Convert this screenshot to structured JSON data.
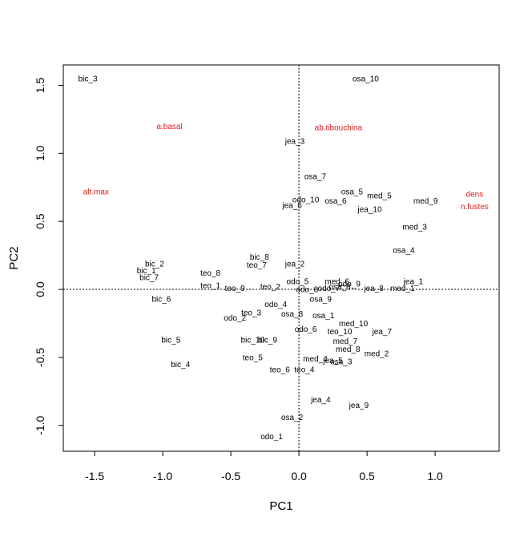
{
  "chart_data": {
    "type": "scatter",
    "xlabel": "PC1",
    "ylabel": "PC2",
    "xlim": [
      -1.73,
      1.47
    ],
    "ylim": [
      -1.19,
      1.65
    ],
    "x_ticks": [
      -1.5,
      -1.0,
      -0.5,
      0.0,
      0.5,
      1.0
    ],
    "y_ticks": [
      -1.0,
      -0.5,
      0.0,
      0.5,
      1.0,
      1.5
    ],
    "x_tick_labels": [
      "-1.5",
      "-1.0",
      "-0.5",
      "0.0",
      "0.5",
      "1.0"
    ],
    "y_tick_labels": [
      "-1.0",
      "-0.5",
      "0.0",
      "0.5",
      "1.0",
      "1.5"
    ],
    "reference_lines": {
      "x": 0,
      "y": 0,
      "style": "dotted"
    },
    "point_color": "#000000",
    "variable_color": "#e31a1c",
    "points": [
      {
        "label": "bic_3",
        "x": -1.55,
        "y": 1.55
      },
      {
        "label": "osa_10",
        "x": 0.49,
        "y": 1.55
      },
      {
        "label": "jea_3",
        "x": -0.03,
        "y": 1.09
      },
      {
        "label": "osa_7",
        "x": 0.12,
        "y": 0.83
      },
      {
        "label": "osa_5",
        "x": 0.39,
        "y": 0.72
      },
      {
        "label": "med_5",
        "x": 0.59,
        "y": 0.69
      },
      {
        "label": "odo_10",
        "x": 0.05,
        "y": 0.66
      },
      {
        "label": "osa_6",
        "x": 0.27,
        "y": 0.65
      },
      {
        "label": "med_9",
        "x": 0.93,
        "y": 0.65
      },
      {
        "label": "jea_6",
        "x": -0.05,
        "y": 0.62
      },
      {
        "label": "jea_10",
        "x": 0.52,
        "y": 0.59
      },
      {
        "label": "med_3",
        "x": 0.85,
        "y": 0.46
      },
      {
        "label": "osa_4",
        "x": 0.77,
        "y": 0.29
      },
      {
        "label": "bic_8",
        "x": -0.29,
        "y": 0.24
      },
      {
        "label": "bic_2",
        "x": -1.06,
        "y": 0.19
      },
      {
        "label": "teo_7",
        "x": -0.31,
        "y": 0.18
      },
      {
        "label": "jea_2",
        "x": -0.03,
        "y": 0.19
      },
      {
        "label": "bic_1",
        "x": -1.12,
        "y": 0.14
      },
      {
        "label": "teo_8",
        "x": -0.65,
        "y": 0.12
      },
      {
        "label": "bic_7",
        "x": -1.1,
        "y": 0.09
      },
      {
        "label": "odo_5",
        "x": -0.01,
        "y": 0.06
      },
      {
        "label": "med_6",
        "x": 0.28,
        "y": 0.06
      },
      {
        "label": "odo_9",
        "x": 0.37,
        "y": 0.04
      },
      {
        "label": "jea_1",
        "x": 0.84,
        "y": 0.06
      },
      {
        "label": "teo_1",
        "x": -0.65,
        "y": 0.03
      },
      {
        "label": "teo_9",
        "x": -0.47,
        "y": 0.01
      },
      {
        "label": "teo_2",
        "x": -0.21,
        "y": 0.02
      },
      {
        "label": "odo_8",
        "x": 0.06,
        "y": 0.0
      },
      {
        "label": "odo_7",
        "x": 0.22,
        "y": 0.01
      },
      {
        "label": "osa_8",
        "x": 0.3,
        "y": 0.02
      },
      {
        "label": "jea_8",
        "x": 0.55,
        "y": 0.01
      },
      {
        "label": "med_1",
        "x": 0.76,
        "y": 0.01
      },
      {
        "label": "bic_6",
        "x": -1.01,
        "y": -0.07
      },
      {
        "label": "osa_9",
        "x": 0.16,
        "y": -0.07
      },
      {
        "label": "odo_4",
        "x": -0.17,
        "y": -0.11
      },
      {
        "label": "teo_3",
        "x": -0.35,
        "y": -0.17
      },
      {
        "label": "osa_8",
        "x": -0.05,
        "y": -0.18
      },
      {
        "label": "osa_1",
        "x": 0.18,
        "y": -0.19
      },
      {
        "label": "odo_2",
        "x": -0.47,
        "y": -0.21
      },
      {
        "label": "med_10",
        "x": 0.4,
        "y": -0.25
      },
      {
        "label": "odo_6",
        "x": 0.05,
        "y": -0.29
      },
      {
        "label": "teo_10",
        "x": 0.3,
        "y": -0.31
      },
      {
        "label": "jea_7",
        "x": 0.61,
        "y": -0.31
      },
      {
        "label": "bic_5",
        "x": -0.94,
        "y": -0.37
      },
      {
        "label": "bic_10",
        "x": -0.34,
        "y": -0.37
      },
      {
        "label": "bic_9",
        "x": -0.23,
        "y": -0.37
      },
      {
        "label": "med_7",
        "x": 0.34,
        "y": -0.38
      },
      {
        "label": "med_8",
        "x": 0.36,
        "y": -0.44
      },
      {
        "label": "med_2",
        "x": 0.57,
        "y": -0.47
      },
      {
        "label": "teo_5",
        "x": -0.34,
        "y": -0.5
      },
      {
        "label": "med_4",
        "x": 0.12,
        "y": -0.51
      },
      {
        "label": "jea_5",
        "x": 0.25,
        "y": -0.52
      },
      {
        "label": "osa_3",
        "x": 0.31,
        "y": -0.53
      },
      {
        "label": "bic_4",
        "x": -0.87,
        "y": -0.55
      },
      {
        "label": "teo_6",
        "x": -0.14,
        "y": -0.59
      },
      {
        "label": "teo_4",
        "x": 0.04,
        "y": -0.59
      },
      {
        "label": "jea_4",
        "x": 0.16,
        "y": -0.81
      },
      {
        "label": "jea_9",
        "x": 0.44,
        "y": -0.85
      },
      {
        "label": "osa_2",
        "x": -0.05,
        "y": -0.94
      },
      {
        "label": "odo_1",
        "x": -0.2,
        "y": -1.08
      }
    ],
    "variables": [
      {
        "label": "a.basal",
        "x": -0.95,
        "y": 1.2
      },
      {
        "label": "ab.tibouchina",
        "x": 0.29,
        "y": 1.19
      },
      {
        "label": "alt.max",
        "x": -1.49,
        "y": 0.72
      },
      {
        "label": "dens",
        "x": 1.29,
        "y": 0.7
      },
      {
        "label": "n.fustes",
        "x": 1.29,
        "y": 0.61
      }
    ]
  }
}
